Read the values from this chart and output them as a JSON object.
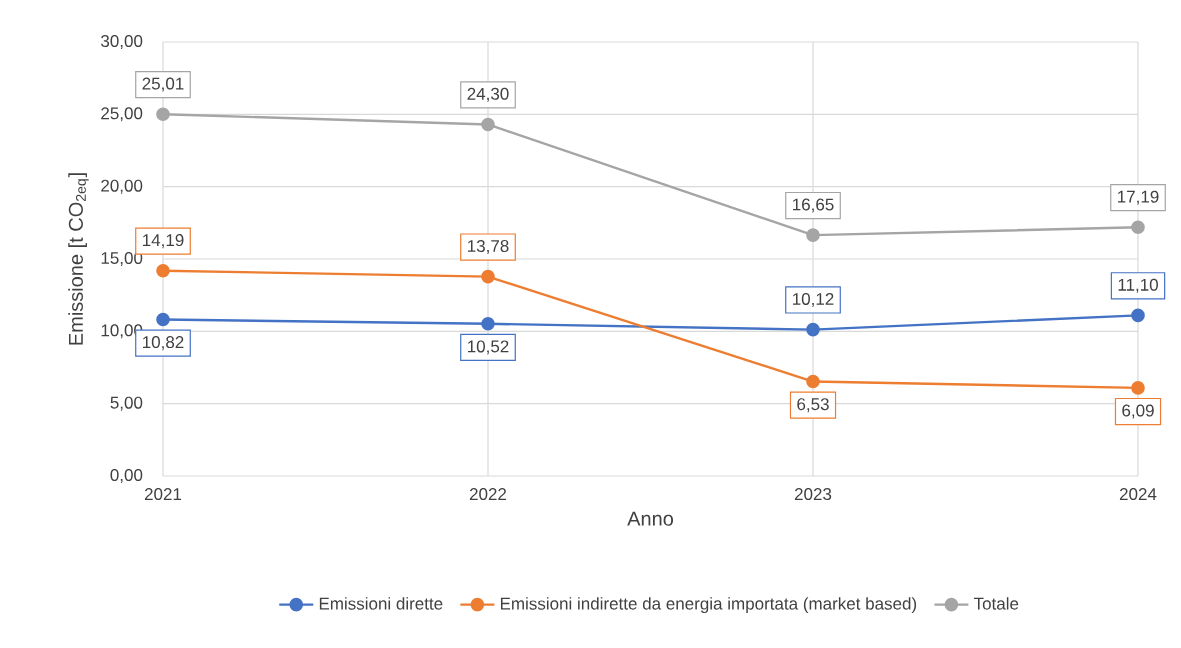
{
  "chart_data": {
    "type": "line",
    "xlabel": "Anno",
    "ylabel": "Emissione [t CO$_{2eq}$]",
    "x": [
      2021,
      2022,
      2023,
      2024
    ],
    "series": [
      {
        "name": "Emissioni dirette",
        "color": "#4472c4",
        "values": [
          10.82,
          10.52,
          10.12,
          11.1
        ],
        "value_labels": [
          "10,82",
          "10,52",
          "10,12",
          "11,10"
        ]
      },
      {
        "name": "Emissioni indirette da energia importata (market based)",
        "color": "#ed7d31",
        "values": [
          14.19,
          13.78,
          6.53,
          6.09
        ],
        "value_labels": [
          "14,19",
          "13,78",
          "6,53",
          "6,09"
        ]
      },
      {
        "name": "Totale",
        "color": "#a5a5a5",
        "values": [
          25.01,
          24.3,
          16.65,
          17.19
        ],
        "value_labels": [
          "25,01",
          "24,30",
          "16,65",
          "17,19"
        ]
      }
    ],
    "xlim": [
      2021,
      2024
    ],
    "xticks": [
      2021,
      2022,
      2023,
      2024
    ],
    "ylim": [
      0,
      30
    ],
    "yticks": [
      {
        "value": 0,
        "label": "0,00"
      },
      {
        "value": 5,
        "label": "5,00"
      },
      {
        "value": 10,
        "label": "10,00"
      },
      {
        "value": 15,
        "label": "15,00"
      },
      {
        "value": 20,
        "label": "20,00"
      },
      {
        "value": 25,
        "label": "25,00"
      },
      {
        "value": 30,
        "label": "30,00"
      }
    ],
    "grid": true,
    "legend": "bottom",
    "marker": "circle",
    "line_style": "solid"
  }
}
